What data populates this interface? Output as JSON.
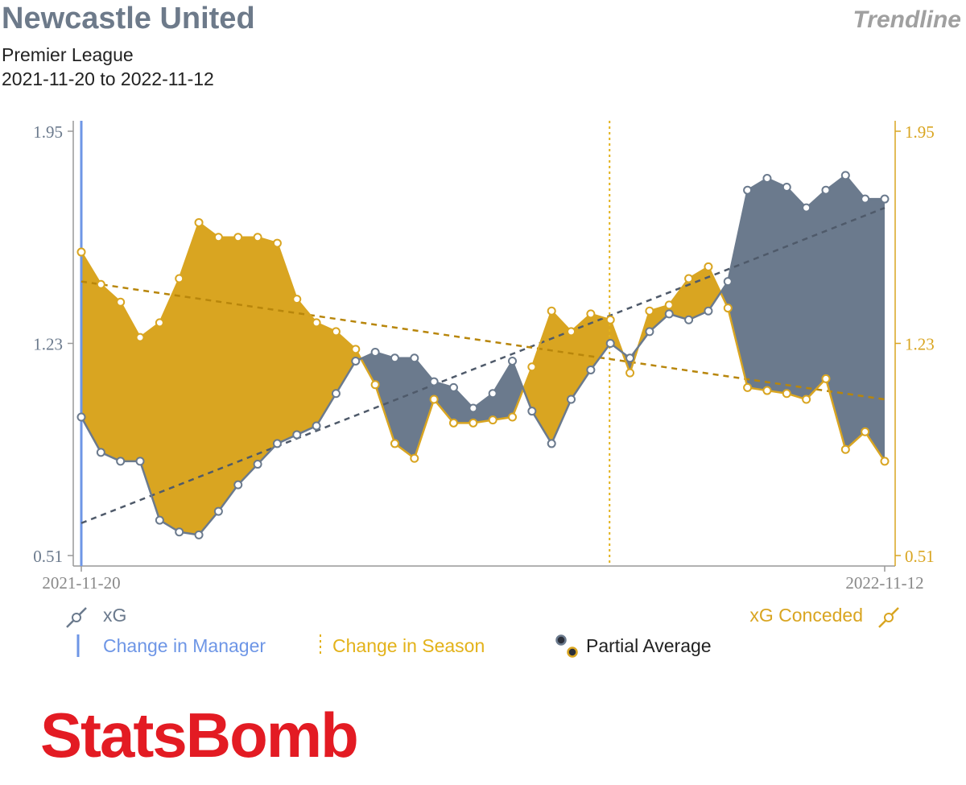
{
  "header": {
    "title": "Newcastle United",
    "tag": "Trendline",
    "competition": "Premier League",
    "date_range": "2021-11-20 to 2022-11-12"
  },
  "colors": {
    "xg": "#6b7a8d",
    "xg_conceded": "#d9a521",
    "manager_line": "#6e96e6",
    "season_line": "#e3b21a",
    "title": "#6d7a8a",
    "logo": "#e31b23"
  },
  "legend": {
    "xg": "xG",
    "xg_conceded": "xG Conceded",
    "manager_change": "Change in Manager",
    "season_change": "Change in Season",
    "partial_average": "Partial Average"
  },
  "logo": {
    "text": "StatsBomb"
  },
  "chart_data": {
    "type": "line",
    "title": "Newcastle United",
    "ylim": [
      0.51,
      1.95
    ],
    "left_axis_ticks": [
      "1.95",
      "1.23",
      "0.51"
    ],
    "right_axis_ticks": [
      "1.95",
      "1.23",
      "0.51"
    ],
    "x_tick_labels": [
      "2021-11-20",
      "2022-11-12"
    ],
    "x": [
      0,
      1,
      2,
      3,
      4,
      5,
      6,
      7,
      8,
      9,
      10,
      11,
      12,
      13,
      14,
      15,
      16,
      17,
      18,
      19,
      20,
      21,
      22,
      23,
      24,
      25,
      26,
      27,
      28,
      29,
      30,
      31,
      32,
      33,
      34,
      35,
      36,
      37,
      38,
      39,
      40,
      41
    ],
    "manager_change_index": 0,
    "season_change_index": 27,
    "series": [
      {
        "name": "xG",
        "values": [
          0.98,
          0.86,
          0.83,
          0.83,
          0.63,
          0.59,
          0.58,
          0.66,
          0.75,
          0.82,
          0.89,
          0.92,
          0.95,
          1.06,
          1.17,
          1.2,
          1.18,
          1.18,
          1.1,
          1.08,
          1.01,
          1.06,
          1.17,
          1.0,
          0.89,
          1.04,
          1.14,
          1.23,
          1.18,
          1.27,
          1.33,
          1.31,
          1.34,
          1.44,
          1.75,
          1.79,
          1.76,
          1.69,
          1.75,
          1.8,
          1.72,
          1.72
        ],
        "trend": [
          0.62,
          1.69
        ]
      },
      {
        "name": "xG Conceded",
        "values": [
          1.54,
          1.43,
          1.37,
          1.25,
          1.3,
          1.45,
          1.64,
          1.59,
          1.59,
          1.59,
          1.57,
          1.38,
          1.3,
          1.27,
          1.21,
          1.09,
          0.89,
          0.84,
          1.04,
          0.96,
          0.96,
          0.97,
          0.98,
          1.15,
          1.34,
          1.27,
          1.33,
          1.31,
          1.13,
          1.34,
          1.36,
          1.45,
          1.49,
          1.35,
          1.08,
          1.07,
          1.06,
          1.04,
          1.11,
          0.87,
          0.93,
          0.83
        ],
        "trend": [
          1.44,
          1.04
        ]
      }
    ]
  }
}
